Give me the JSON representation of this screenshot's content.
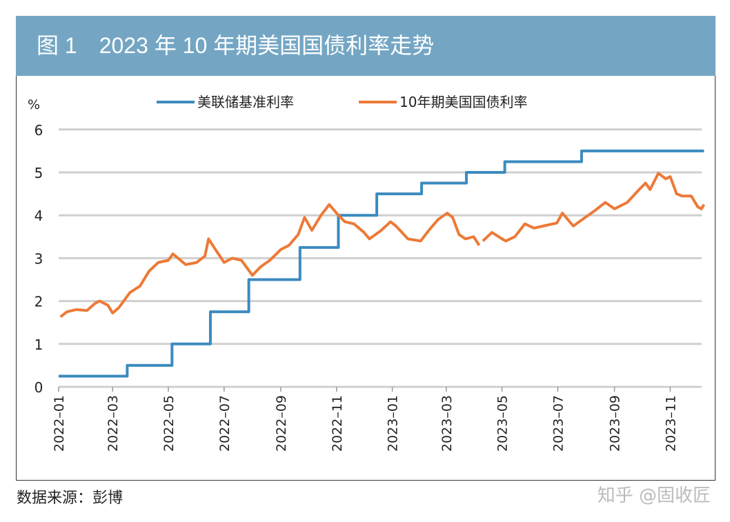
{
  "chart_data": {
    "type": "line",
    "title": "图 1　2023 年 10 年期美国国债利率走势",
    "ylabel": "%",
    "ylim": [
      0,
      6
    ],
    "yticks": [
      "0",
      "1",
      "2",
      "3",
      "4",
      "5",
      "6"
    ],
    "xticks": [
      "2022–01",
      "2022–03",
      "2022–05",
      "2022–07",
      "2022–09",
      "2022–11",
      "2023–01",
      "2023–03",
      "2023–05",
      "2023–07",
      "2023–09",
      "2023–11"
    ],
    "xtick_dates": [
      "2022-01-01",
      "2022-03-01",
      "2022-05-01",
      "2022-07-01",
      "2022-09-01",
      "2022-11-01",
      "2023-01-01",
      "2023-03-01",
      "2023-05-01",
      "2023-07-01",
      "2023-09-01",
      "2023-11-01"
    ],
    "grid": true,
    "legend": "top",
    "series": [
      {
        "name": "美联储基准利率",
        "color": "#3b8bc0",
        "step": true,
        "points": [
          [
            "2022-01-01",
            0.25
          ],
          [
            "2022-03-17",
            0.5
          ],
          [
            "2022-05-05",
            1.0
          ],
          [
            "2022-06-16",
            1.75
          ],
          [
            "2022-07-28",
            2.5
          ],
          [
            "2022-09-22",
            3.25
          ],
          [
            "2022-11-03",
            4.0
          ],
          [
            "2022-12-15",
            4.5
          ],
          [
            "2023-02-02",
            4.75
          ],
          [
            "2023-03-23",
            5.0
          ],
          [
            "2023-05-04",
            5.25
          ],
          [
            "2023-07-27",
            5.5
          ],
          [
            "2023-12-08",
            5.5
          ]
        ]
      },
      {
        "name": "10年期美国国债利率",
        "color": "#ec7a37",
        "step": false,
        "points": [
          [
            "2022-01-03",
            1.63
          ],
          [
            "2022-01-10",
            1.75
          ],
          [
            "2022-01-20",
            1.8
          ],
          [
            "2022-02-01",
            1.78
          ],
          [
            "2022-02-10",
            1.95
          ],
          [
            "2022-02-15",
            2.0
          ],
          [
            "2022-02-24",
            1.9
          ],
          [
            "2022-03-01",
            1.72
          ],
          [
            "2022-03-08",
            1.85
          ],
          [
            "2022-03-20",
            2.2
          ],
          [
            "2022-03-31",
            2.35
          ],
          [
            "2022-04-10",
            2.7
          ],
          [
            "2022-04-20",
            2.9
          ],
          [
            "2022-05-01",
            2.95
          ],
          [
            "2022-05-06",
            3.1
          ],
          [
            "2022-05-20",
            2.85
          ],
          [
            "2022-06-01",
            2.9
          ],
          [
            "2022-06-10",
            3.05
          ],
          [
            "2022-06-14",
            3.45
          ],
          [
            "2022-06-20",
            3.25
          ],
          [
            "2022-07-01",
            2.9
          ],
          [
            "2022-07-10",
            3.0
          ],
          [
            "2022-07-20",
            2.95
          ],
          [
            "2022-08-01",
            2.6
          ],
          [
            "2022-08-10",
            2.8
          ],
          [
            "2022-08-20",
            2.95
          ],
          [
            "2022-09-01",
            3.2
          ],
          [
            "2022-09-10",
            3.3
          ],
          [
            "2022-09-20",
            3.55
          ],
          [
            "2022-09-27",
            3.95
          ],
          [
            "2022-10-05",
            3.65
          ],
          [
            "2022-10-15",
            4.0
          ],
          [
            "2022-10-24",
            4.25
          ],
          [
            "2022-11-01",
            4.05
          ],
          [
            "2022-11-10",
            3.85
          ],
          [
            "2022-11-20",
            3.8
          ],
          [
            "2022-12-01",
            3.6
          ],
          [
            "2022-12-07",
            3.45
          ],
          [
            "2022-12-20",
            3.65
          ],
          [
            "2022-12-30",
            3.85
          ],
          [
            "2023-01-05",
            3.75
          ],
          [
            "2023-01-18",
            3.45
          ],
          [
            "2023-02-01",
            3.4
          ],
          [
            "2023-02-10",
            3.65
          ],
          [
            "2023-02-20",
            3.9
          ],
          [
            "2023-03-02",
            4.05
          ],
          [
            "2023-03-08",
            3.95
          ],
          [
            "2023-03-15",
            3.55
          ],
          [
            "2023-03-22",
            3.45
          ],
          [
            "2023-03-31",
            3.5
          ],
          [
            "2023-04-06",
            3.3
          ],
          null,
          [
            "2023-04-10",
            3.4
          ],
          [
            "2023-04-20",
            3.6
          ],
          [
            "2023-05-01",
            3.45
          ],
          [
            "2023-05-05",
            3.4
          ],
          [
            "2023-05-15",
            3.5
          ],
          [
            "2023-05-26",
            3.8
          ],
          [
            "2023-06-05",
            3.7
          ],
          [
            "2023-06-15",
            3.75
          ],
          [
            "2023-06-30",
            3.82
          ],
          [
            "2023-07-06",
            4.05
          ],
          [
            "2023-07-18",
            3.75
          ],
          [
            "2023-07-31",
            3.95
          ],
          [
            "2023-08-10",
            4.1
          ],
          [
            "2023-08-22",
            4.3
          ],
          [
            "2023-09-01",
            4.15
          ],
          [
            "2023-09-15",
            4.3
          ],
          [
            "2023-09-28",
            4.6
          ],
          [
            "2023-10-05",
            4.75
          ],
          [
            "2023-10-10",
            4.6
          ],
          [
            "2023-10-19",
            4.98
          ],
          [
            "2023-10-27",
            4.85
          ],
          [
            "2023-11-01",
            4.9
          ],
          [
            "2023-11-08",
            4.5
          ],
          [
            "2023-11-14",
            4.45
          ],
          [
            "2023-11-24",
            4.45
          ],
          [
            "2023-12-01",
            4.2
          ],
          [
            "2023-12-05",
            4.15
          ],
          [
            "2023-12-08",
            4.25
          ]
        ]
      }
    ]
  },
  "footer": {
    "source": "数据来源：彭博",
    "watermark": "知乎 @固收匠"
  }
}
